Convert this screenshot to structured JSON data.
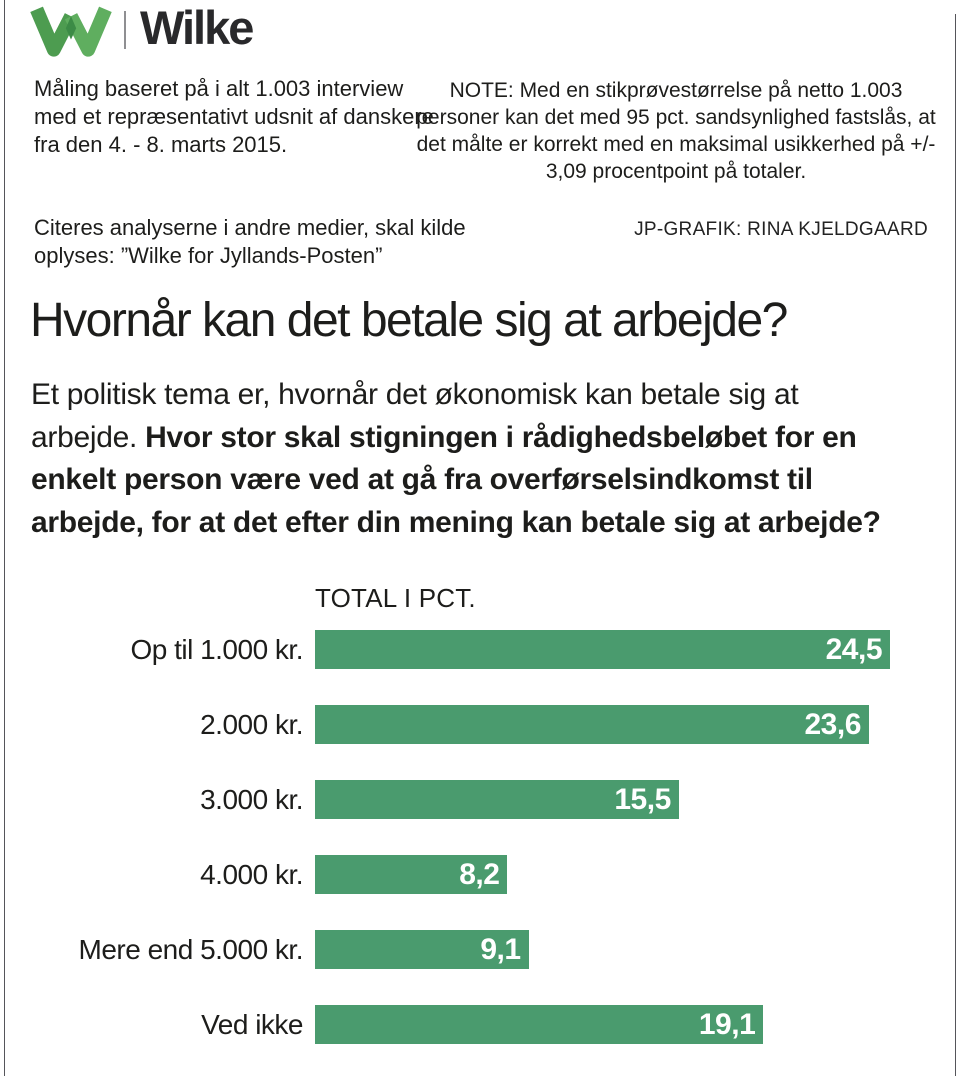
{
  "brand": {
    "name": "Wilke",
    "logo_icon": "wilke-w-logo"
  },
  "notes": {
    "methodology": "Måling baseret på i alt 1.003 interview med et repræsentativt udsnit af danskere fra den 4. - 8. marts 2015.",
    "sample": "NOTE: Med en stikprøvestørrelse på netto 1.003 personer kan det med 95 pct. sandsynlighed fastslås, at det målte er korrekt med en maksimal usikkerhed på +/- 3,09 procentpoint på totaler.",
    "citation": "Citeres analyserne i andre medier, skal kilde oplyses: ”Wilke for Jyllands-Posten”",
    "credit": "JP-GRAFIK: RINA KJELDGAARD"
  },
  "headline": "Hvornår kan det betale sig at arbejde?",
  "lead": {
    "normal": "Et politisk tema er, hvornår det økonomisk kan betale sig at arbejde.  ",
    "bold": "Hvor stor skal stigningen i rådighedsbeløbet for en enkelt person være ved at gå fra overførselsindkomst til arbejde, for at det efter din mening kan betale sig at arbejde?"
  },
  "chart_data": {
    "type": "bar",
    "orientation": "horizontal",
    "title": "TOTAL I PCT.",
    "categories": [
      "Op til 1.000 kr.",
      "2.000 kr.",
      "3.000 kr.",
      "4.000 kr.",
      "Mere end 5.000 kr.",
      "Ved ikke"
    ],
    "values": [
      24.5,
      23.6,
      15.5,
      8.2,
      9.1,
      19.1
    ],
    "value_labels": [
      "24,5",
      "23,6",
      "15,5",
      "8,2",
      "9,1",
      "19,1"
    ],
    "xlim": [
      0,
      24.5
    ],
    "grid": false,
    "legend": "none",
    "bar_color": "#4a9b6e",
    "value_label_color": "#ffffff"
  },
  "colors": {
    "bar_green": "#4a9b6e",
    "logo_green_left": "#4d9c50",
    "logo_green_right": "#5fae5f",
    "text": "#1d1d1b",
    "rule": "#55555a"
  }
}
